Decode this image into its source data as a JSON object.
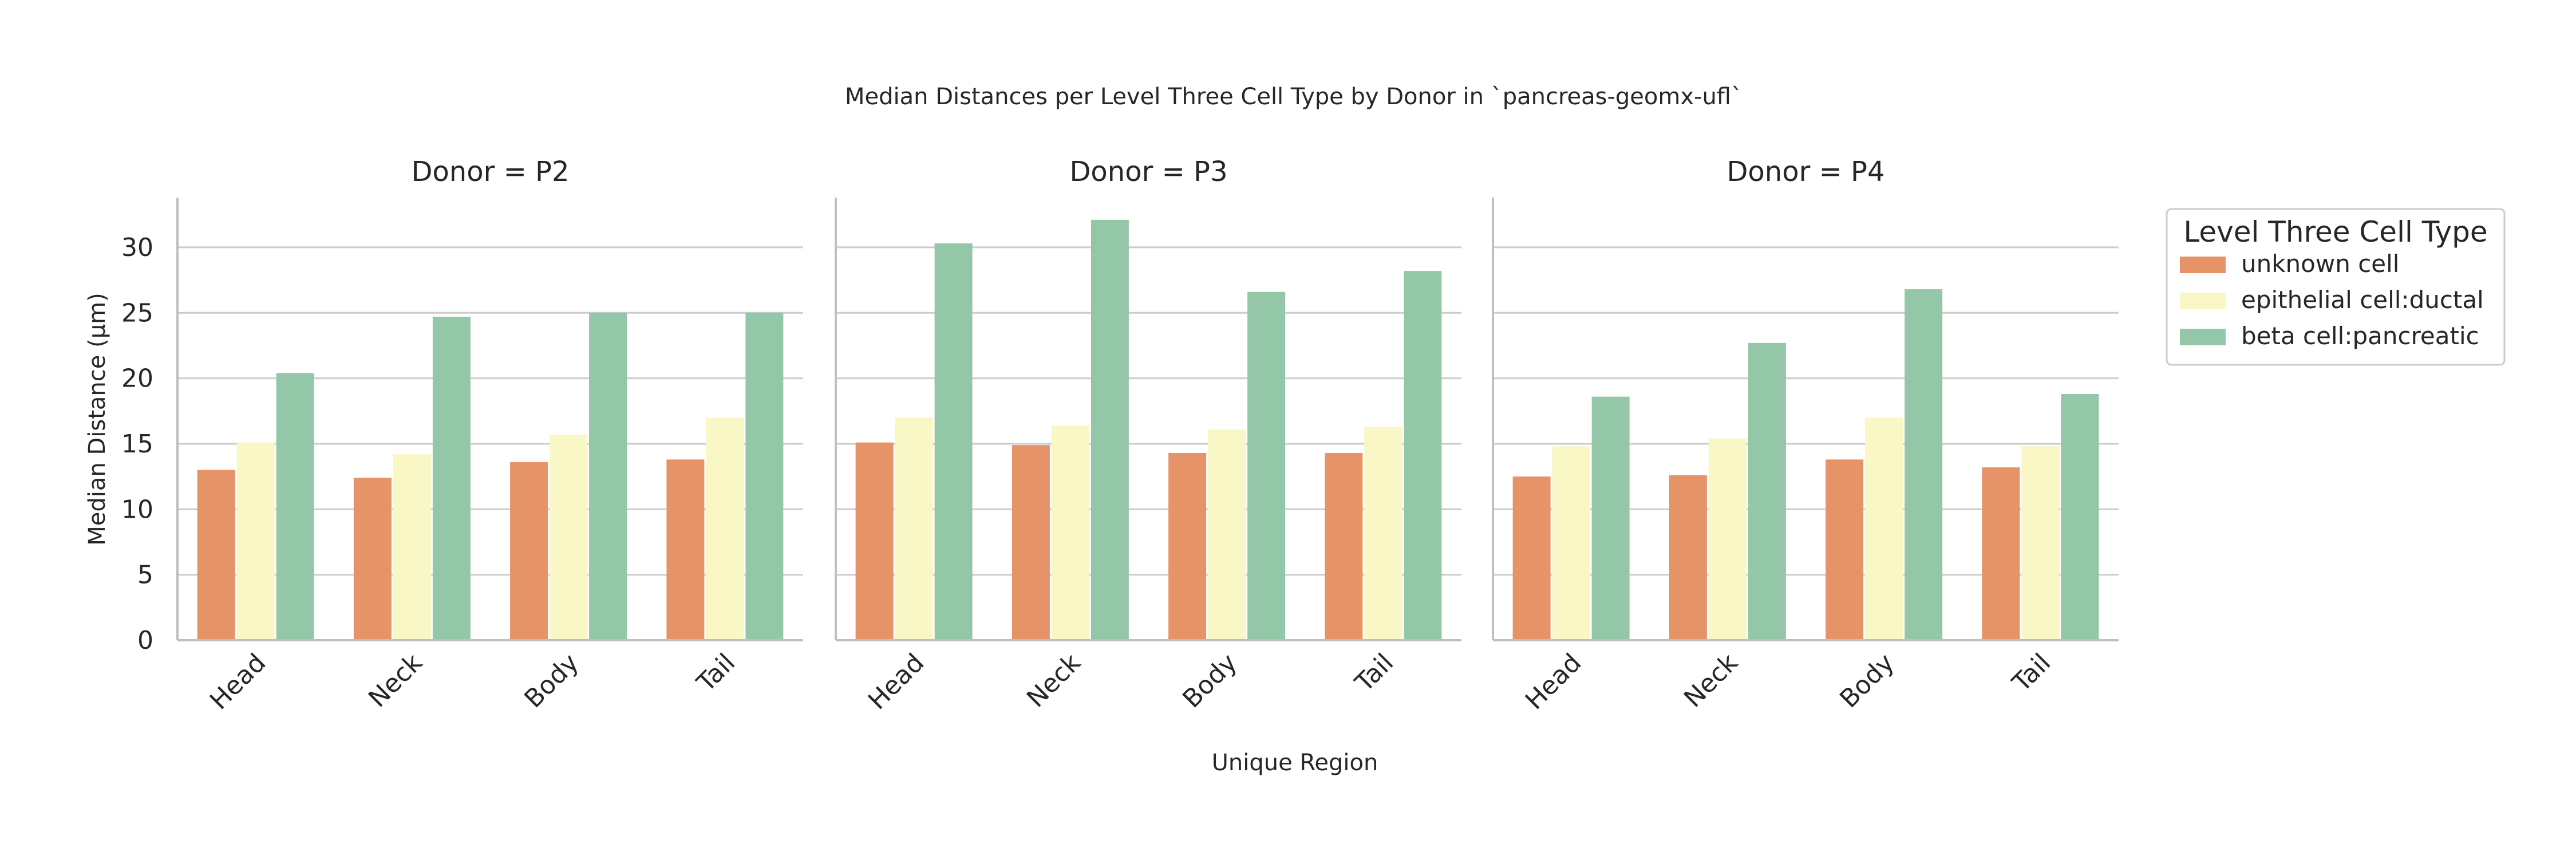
{
  "chart_data": {
    "type": "bar",
    "title": "Median Distances per Level Three Cell Type by Donor in `pancreas-geomx-ufl`",
    "xlabel": "Unique Region",
    "ylabel": "Median Distance (µm)",
    "ylim": [
      0,
      33.8
    ],
    "yticks": [
      0,
      5,
      10,
      15,
      20,
      25,
      30
    ],
    "grid": "horizontal",
    "legend_position": "upper-right-outside",
    "legend_title": "Level Three Cell Type",
    "categories": [
      "Head",
      "Neck",
      "Body",
      "Tail"
    ],
    "series_meta": [
      {
        "name": "unknown cell",
        "color": "#e59367"
      },
      {
        "name": "epithelial cell:ductal",
        "color": "#f8f7c5"
      },
      {
        "name": "beta cell:pancreatic",
        "color": "#93c7a7"
      }
    ],
    "panels": [
      {
        "title": "Donor = P2",
        "series": [
          {
            "name": "unknown cell",
            "values": [
              13.0,
              12.4,
              13.6,
              13.8
            ]
          },
          {
            "name": "epithelial cell:ductal",
            "values": [
              15.1,
              14.2,
              15.7,
              17.0
            ]
          },
          {
            "name": "beta cell:pancreatic",
            "values": [
              20.4,
              24.7,
              25.0,
              25.0
            ]
          }
        ]
      },
      {
        "title": "Donor = P3",
        "series": [
          {
            "name": "unknown cell",
            "values": [
              15.1,
              14.9,
              14.3,
              14.3
            ]
          },
          {
            "name": "epithelial cell:ductal",
            "values": [
              17.0,
              16.4,
              16.1,
              16.3
            ]
          },
          {
            "name": "beta cell:pancreatic",
            "values": [
              30.3,
              32.1,
              26.6,
              28.2
            ]
          }
        ]
      },
      {
        "title": "Donor = P4",
        "series": [
          {
            "name": "unknown cell",
            "values": [
              12.5,
              12.6,
              13.8,
              13.2
            ]
          },
          {
            "name": "epithelial cell:ductal",
            "values": [
              14.8,
              15.4,
              17.0,
              14.8
            ]
          },
          {
            "name": "beta cell:pancreatic",
            "values": [
              18.6,
              22.7,
              26.8,
              18.8
            ]
          }
        ]
      }
    ]
  }
}
